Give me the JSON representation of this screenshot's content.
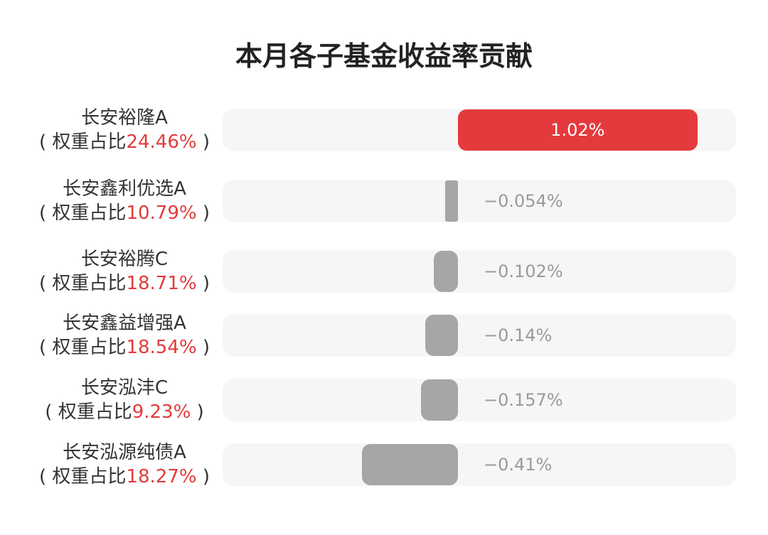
{
  "title": "本月各子基金收益率贡献",
  "colors": {
    "positive": "#e53a3d",
    "negative": "#a6a6a6",
    "weight_text": "#e23b3b",
    "track": "#f6f6f6"
  },
  "chart_data": {
    "type": "bar",
    "orientation": "horizontal",
    "title": "本月各子基金收益率贡献",
    "unit": "%",
    "categories": [
      "长安裕隆A",
      "长安鑫利优选A",
      "长安裕腾C",
      "长安鑫益增强A",
      "长安泓沣C",
      "长安泓源纯债A"
    ],
    "weight_prefix": "权重占比",
    "weights": [
      "24.46%",
      "10.79%",
      "18.71%",
      "18.54%",
      "9.23%",
      "18.27%"
    ],
    "values": [
      1.02,
      -0.054,
      -0.102,
      -0.14,
      -0.157,
      -0.41
    ],
    "value_labels": [
      "1.02%",
      "−0.054%",
      "−0.102%",
      "−0.14%",
      "−0.157%",
      "−0.41%"
    ]
  }
}
